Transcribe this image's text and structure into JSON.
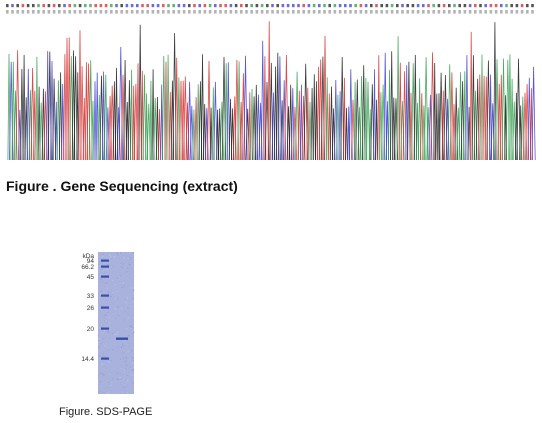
{
  "sequencing": {
    "caption": "Figure . Gene Sequencing (extract)",
    "base_colors": {
      "A": "#2e9b4a",
      "C": "#3a3ad0",
      "G": "#1a1a1a",
      "T": "#d42a2a"
    }
  },
  "sds_page": {
    "caption": "Figure. SDS-PAGE",
    "unit_label": "kDa",
    "markers": [
      "94",
      "66.2",
      "45",
      "33",
      "26",
      "20",
      "14.4"
    ],
    "lane_color": "#a8b2dc",
    "band_color": "#3a4fa8"
  }
}
